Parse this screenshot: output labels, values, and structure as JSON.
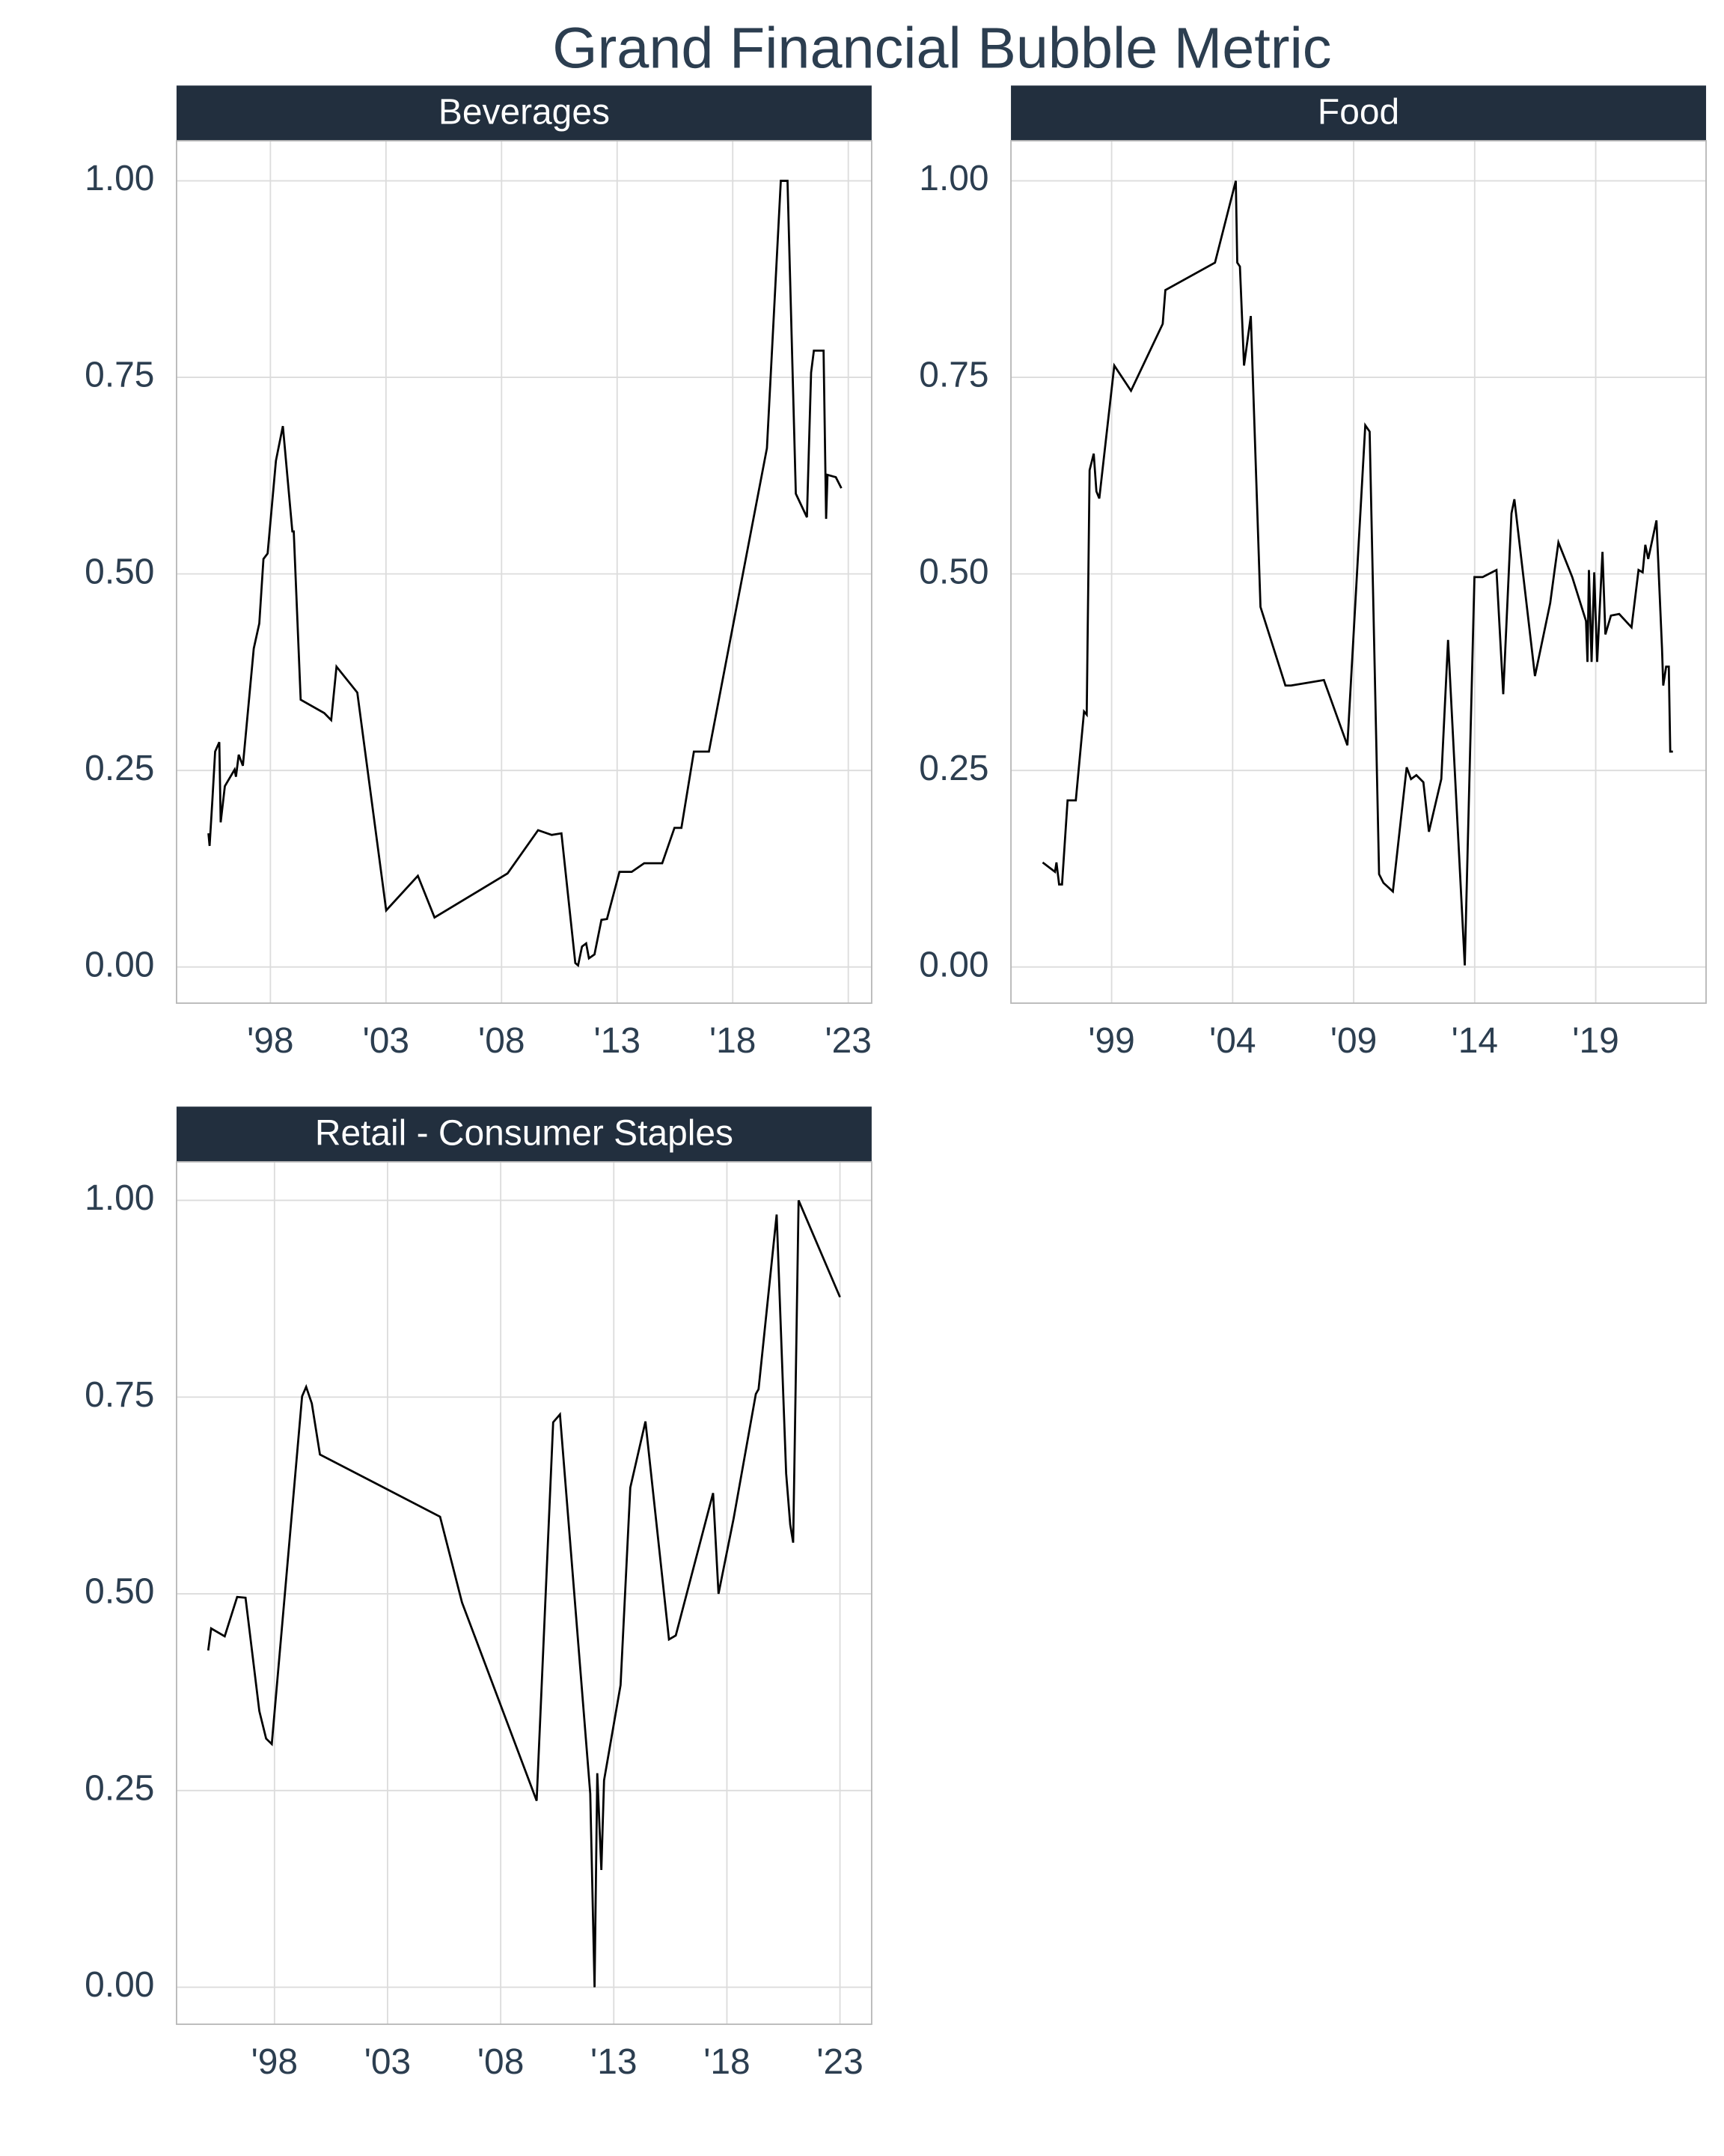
{
  "title": "Grand Financial Bubble Metric",
  "chart_data": [
    {
      "type": "line",
      "title": "Beverages",
      "color": "#000000",
      "grid": true,
      "xlim": [
        1993.94,
        2024.01
      ],
      "ylim": [
        -0.046,
        1.051
      ],
      "xticks": [
        {
          "value": 1998,
          "label": "'98"
        },
        {
          "value": 2003,
          "label": "'03"
        },
        {
          "value": 2008,
          "label": "'08"
        },
        {
          "value": 2013,
          "label": "'13"
        },
        {
          "value": 2018,
          "label": "'18"
        },
        {
          "value": 2023,
          "label": "'23"
        }
      ],
      "yticks": [
        {
          "value": 0,
          "label": "0.00"
        },
        {
          "value": 0.25,
          "label": "0.25"
        },
        {
          "value": 0.5,
          "label": "0.50"
        },
        {
          "value": 0.75,
          "label": "0.75"
        },
        {
          "value": 1,
          "label": "1.00"
        }
      ],
      "x": [
        1995.32,
        1995.37,
        1995.49,
        1995.61,
        1995.79,
        1995.85,
        1996.03,
        1996.27,
        1996.45,
        1996.51,
        1996.63,
        1996.81,
        1997.28,
        1997.52,
        1997.7,
        1997.88,
        1998.24,
        1998.54,
        1998.95,
        1999.01,
        1999.31,
        2000.33,
        2000.63,
        2000.86,
        2001.76,
        2003.01,
        2004.38,
        2005.1,
        2008.26,
        2009.58,
        2010.17,
        2010.59,
        2011.19,
        2011.31,
        2011.48,
        2011.66,
        2011.78,
        2012.02,
        2012.32,
        2012.56,
        2013.1,
        2013.63,
        2014.17,
        2014.95,
        2015.48,
        2015.78,
        2016.32,
        2016.97,
        2019.48,
        2020.08,
        2020.37,
        2020.73,
        2021.21,
        2021.39,
        2021.51,
        2021.93,
        2022.04,
        2022.1,
        2022.46,
        2022.7
      ],
      "values": [
        0.17,
        0.154,
        0.212,
        0.274,
        0.286,
        0.184,
        0.23,
        0.242,
        0.251,
        0.242,
        0.27,
        0.256,
        0.405,
        0.437,
        0.519,
        0.526,
        0.644,
        0.688,
        0.554,
        0.554,
        0.34,
        0.323,
        0.314,
        0.382,
        0.349,
        0.072,
        0.116,
        0.063,
        0.119,
        0.174,
        0.168,
        0.17,
        0.005,
        0.002,
        0.026,
        0.03,
        0.011,
        0.016,
        0.06,
        0.061,
        0.121,
        0.121,
        0.132,
        0.132,
        0.177,
        0.177,
        0.274,
        0.274,
        0.66,
        1.0,
        1.0,
        0.602,
        0.572,
        0.756,
        0.784,
        0.784,
        0.57,
        0.626,
        0.623,
        0.609
      ]
    },
    {
      "type": "line",
      "title": "Food",
      "color": "#000000",
      "grid": true,
      "xlim": [
        1994.84,
        2023.56
      ],
      "ylim": [
        -0.046,
        1.051
      ],
      "xticks": [
        {
          "value": 1999,
          "label": "'99"
        },
        {
          "value": 2004,
          "label": "'04"
        },
        {
          "value": 2009,
          "label": "'09"
        },
        {
          "value": 2014,
          "label": "'14"
        },
        {
          "value": 2019,
          "label": "'19"
        }
      ],
      "yticks": [
        {
          "value": 0,
          "label": "0.00"
        },
        {
          "value": 0.25,
          "label": "0.25"
        },
        {
          "value": 0.5,
          "label": "0.50"
        },
        {
          "value": 0.75,
          "label": "0.75"
        },
        {
          "value": 1,
          "label": "1.00"
        }
      ],
      "x": [
        1996.15,
        1996.66,
        1996.72,
        1996.83,
        1996.95,
        1997.18,
        1997.52,
        1997.86,
        1997.97,
        1998.09,
        1998.26,
        1998.37,
        1998.49,
        1999.11,
        1999.8,
        2001.11,
        2001.22,
        2003.27,
        2004.13,
        2004.19,
        2004.3,
        2004.47,
        2004.75,
        2005.15,
        2006.18,
        2006.41,
        2007.77,
        2008.74,
        2009.48,
        2009.66,
        2010.05,
        2010.23,
        2010.62,
        2011.19,
        2011.37,
        2011.59,
        2011.88,
        2012.11,
        2012.62,
        2012.9,
        2013.59,
        2013.99,
        2014.33,
        2014.9,
        2015.18,
        2015.52,
        2015.64,
        2016.49,
        2017.12,
        2017.29,
        2017.46,
        2018.03,
        2018.6,
        2018.66,
        2018.72,
        2018.83,
        2018.94,
        2019.06,
        2019.28,
        2019.4,
        2019.63,
        2019.97,
        2020.48,
        2020.77,
        2020.94,
        2021.05,
        2021.17,
        2021.51,
        2021.74,
        2021.79,
        2021.91,
        2022.02,
        2022.08,
        2022.19
      ],
      "values": [
        0.133,
        0.121,
        0.133,
        0.105,
        0.105,
        0.212,
        0.212,
        0.325,
        0.321,
        0.632,
        0.653,
        0.605,
        0.596,
        0.765,
        0.733,
        0.818,
        0.861,
        0.896,
        1.0,
        0.896,
        0.891,
        0.765,
        0.828,
        0.458,
        0.358,
        0.358,
        0.365,
        0.282,
        0.689,
        0.681,
        0.118,
        0.107,
        0.096,
        0.254,
        0.239,
        0.244,
        0.235,
        0.172,
        0.239,
        0.416,
        0.002,
        0.496,
        0.496,
        0.505,
        0.347,
        0.577,
        0.595,
        0.37,
        0.463,
        0.502,
        0.54,
        0.496,
        0.44,
        0.388,
        0.505,
        0.388,
        0.502,
        0.388,
        0.528,
        0.423,
        0.447,
        0.449,
        0.432,
        0.505,
        0.502,
        0.537,
        0.519,
        0.568,
        0.405,
        0.358,
        0.382,
        0.382,
        0.274,
        0.274
      ]
    },
    {
      "type": "line",
      "title": "Retail - Consumer Staples",
      "color": "#000000",
      "grid": true,
      "xlim": [
        1993.67,
        2024.4
      ],
      "ylim": [
        -0.047,
        1.049
      ],
      "xticks": [
        {
          "value": 1998,
          "label": "'98"
        },
        {
          "value": 2003,
          "label": "'03"
        },
        {
          "value": 2008,
          "label": "'08"
        },
        {
          "value": 2013,
          "label": "'13"
        },
        {
          "value": 2018,
          "label": "'18"
        },
        {
          "value": 2023,
          "label": "'23"
        }
      ],
      "yticks": [
        {
          "value": 0,
          "label": "0.00"
        },
        {
          "value": 0.25,
          "label": "0.25"
        },
        {
          "value": 0.5,
          "label": "0.50"
        },
        {
          "value": 0.75,
          "label": "0.75"
        },
        {
          "value": 1,
          "label": "1.00"
        }
      ],
      "x": [
        1995.07,
        1995.2,
        1995.8,
        1996.35,
        1996.72,
        1997.33,
        1997.63,
        1997.88,
        1999.22,
        1999.4,
        1999.65,
        2000.01,
        2005.32,
        2006.29,
        2009.59,
        2010.32,
        2010.62,
        2011.96,
        2012.15,
        2012.27,
        2012.45,
        2012.57,
        2013.3,
        2013.73,
        2014.4,
        2015.44,
        2015.74,
        2017.39,
        2017.63,
        2018.3,
        2019.28,
        2019.4,
        2020.2,
        2020.62,
        2020.8,
        2020.93,
        2021.17,
        2023.0
      ],
      "values": [
        0.428,
        0.456,
        0.446,
        0.496,
        0.495,
        0.351,
        0.316,
        0.309,
        0.751,
        0.763,
        0.742,
        0.677,
        0.598,
        0.489,
        0.237,
        0.718,
        0.728,
        0.246,
        0.0,
        0.272,
        0.149,
        0.263,
        0.384,
        0.635,
        0.719,
        0.442,
        0.447,
        0.628,
        0.5,
        0.596,
        0.754,
        0.76,
        0.982,
        0.653,
        0.588,
        0.565,
        1.0,
        0.877
      ]
    }
  ]
}
